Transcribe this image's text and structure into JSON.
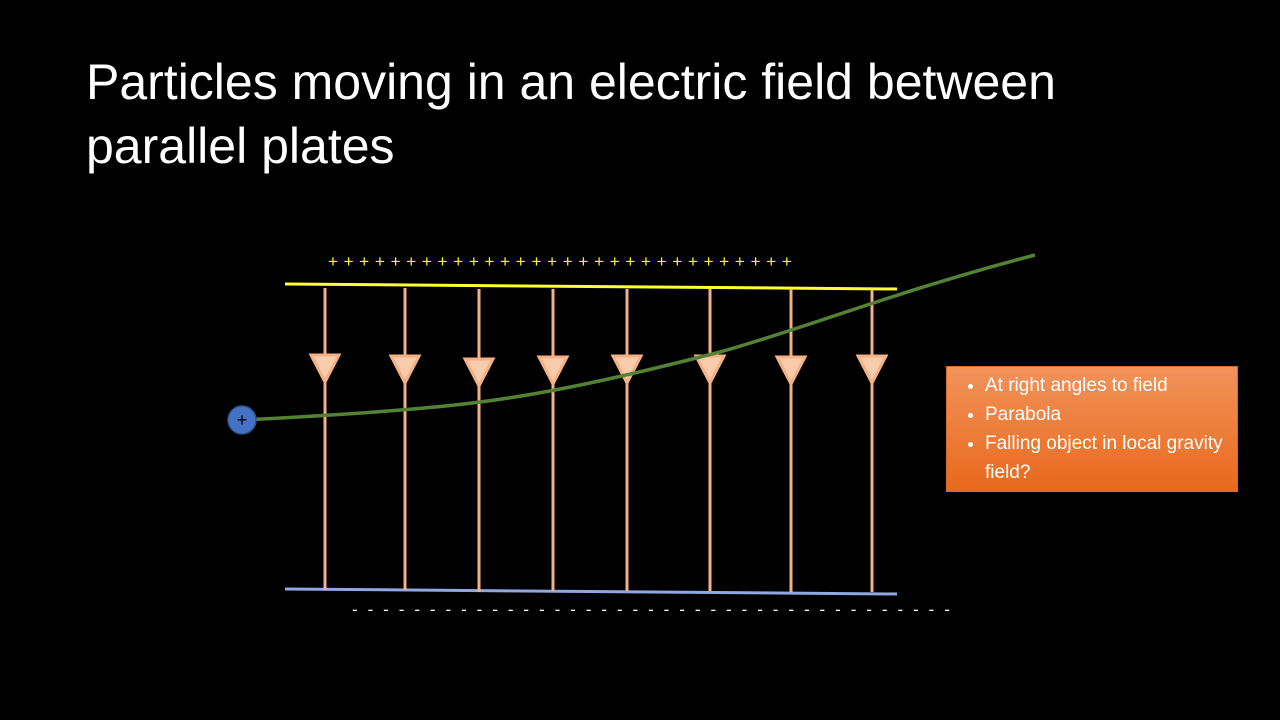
{
  "title": "Particles moving in an electric field between parallel plates",
  "positive_plate_label": "+ + + + + + + + + + + + + + + + + + + + + + + + + + + + + +",
  "negative_plate_label": "- - - - - - - - - - - - - - - - - - - - - - - - - - - - - - - - - - - - - - -",
  "particle_label": "+",
  "notes": [
    "At right angles to field",
    "Parabola",
    "Falling object in local gravity field?"
  ]
}
